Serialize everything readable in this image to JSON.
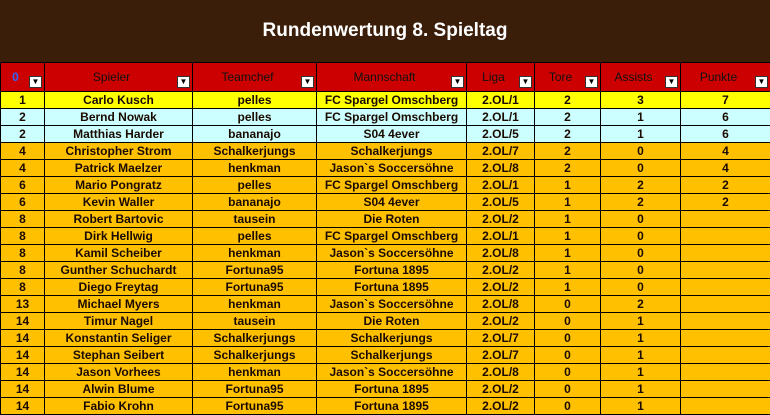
{
  "title": "Rundenwertung 8. Spieltag",
  "columns": [
    "0",
    "Spieler",
    "Teamchef",
    "Mannschaft",
    "Liga",
    "Tore",
    "Assists",
    "Punkte"
  ],
  "dropdown_icon": "▼",
  "rows": [
    {
      "style": "yellow",
      "cells": [
        "1",
        "Carlo Kusch",
        "pelles",
        "FC Spargel Omschberg",
        "2.OL/1",
        "2",
        "3",
        "7"
      ]
    },
    {
      "style": "cyan",
      "cells": [
        "2",
        "Bernd Nowak",
        "pelles",
        "FC Spargel Omschberg",
        "2.OL/1",
        "2",
        "1",
        "6"
      ]
    },
    {
      "style": "cyan",
      "cells": [
        "2",
        "Matthias Harder",
        "bananajo",
        "S04 4ever",
        "2.OL/5",
        "2",
        "1",
        "6"
      ]
    },
    {
      "style": "orange",
      "cells": [
        "4",
        "Christopher Strom",
        "Schalkerjungs",
        "Schalkerjungs",
        "2.OL/7",
        "2",
        "0",
        "4"
      ]
    },
    {
      "style": "orange",
      "cells": [
        "4",
        "Patrick Maelzer",
        "henkman",
        "Jason`s Soccersöhne",
        "2.OL/8",
        "2",
        "0",
        "4"
      ]
    },
    {
      "style": "orange",
      "cells": [
        "6",
        "Mario Pongratz",
        "pelles",
        "FC Spargel Omschberg",
        "2.OL/1",
        "1",
        "2",
        "2"
      ]
    },
    {
      "style": "orange",
      "cells": [
        "6",
        "Kevin Waller",
        "bananajo",
        "S04 4ever",
        "2.OL/5",
        "1",
        "2",
        "2"
      ]
    },
    {
      "style": "orange",
      "cells": [
        "8",
        "Robert Bartovic",
        "tausein",
        "Die Roten",
        "2.OL/2",
        "1",
        "0",
        ""
      ]
    },
    {
      "style": "orange",
      "cells": [
        "8",
        "Dirk Hellwig",
        "pelles",
        "FC Spargel Omschberg",
        "2.OL/1",
        "1",
        "0",
        ""
      ]
    },
    {
      "style": "orange",
      "cells": [
        "8",
        "Kamil Scheiber",
        "henkman",
        "Jason`s Soccersöhne",
        "2.OL/8",
        "1",
        "0",
        ""
      ]
    },
    {
      "style": "orange",
      "cells": [
        "8",
        "Gunther Schuchardt",
        "Fortuna95",
        "Fortuna 1895",
        "2.OL/2",
        "1",
        "0",
        ""
      ]
    },
    {
      "style": "orange",
      "cells": [
        "8",
        "Diego Freytag",
        "Fortuna95",
        "Fortuna 1895",
        "2.OL/2",
        "1",
        "0",
        ""
      ]
    },
    {
      "style": "orange",
      "cells": [
        "13",
        "Michael Myers",
        "henkman",
        "Jason`s Soccersöhne",
        "2.OL/8",
        "0",
        "2",
        ""
      ]
    },
    {
      "style": "orange",
      "cells": [
        "14",
        "Timur Nagel",
        "tausein",
        "Die Roten",
        "2.OL/2",
        "0",
        "1",
        ""
      ]
    },
    {
      "style": "orange",
      "cells": [
        "14",
        "Konstantin Seliger",
        "Schalkerjungs",
        "Schalkerjungs",
        "2.OL/7",
        "0",
        "1",
        ""
      ]
    },
    {
      "style": "orange",
      "cells": [
        "14",
        "Stephan Seibert",
        "Schalkerjungs",
        "Schalkerjungs",
        "2.OL/7",
        "0",
        "1",
        ""
      ]
    },
    {
      "style": "orange",
      "cells": [
        "14",
        "Jason Vorhees",
        "henkman",
        "Jason`s Soccersöhne",
        "2.OL/8",
        "0",
        "1",
        ""
      ]
    },
    {
      "style": "orange",
      "cells": [
        "14",
        "Alwin Blume",
        "Fortuna95",
        "Fortuna 1895",
        "2.OL/2",
        "0",
        "1",
        ""
      ]
    },
    {
      "style": "orange",
      "cells": [
        "14",
        "Fabio Krohn",
        "Fortuna95",
        "Fortuna 1895",
        "2.OL/2",
        "0",
        "1",
        ""
      ]
    }
  ]
}
